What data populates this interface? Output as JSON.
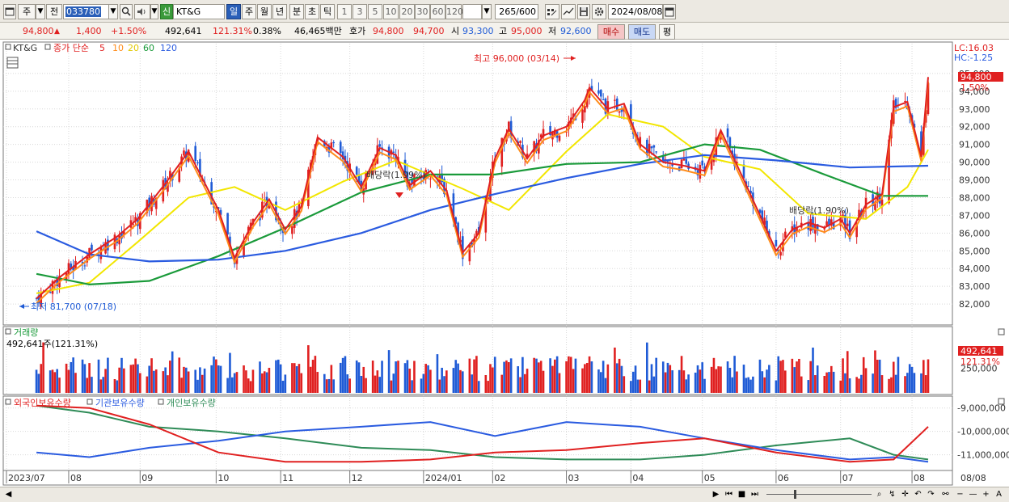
{
  "toolbar": {
    "market_label": "주",
    "prev_label": "전",
    "code_value": "033780",
    "stock_name_badge": "신",
    "stock_name": "KT&G",
    "period_tabs": [
      "일",
      "주",
      "월",
      "년",
      "분",
      "초",
      "틱"
    ],
    "intervals": [
      "1",
      "3",
      "5",
      "10",
      "20",
      "30",
      "60",
      "120"
    ],
    "count_value": "265",
    "count_total": "/600",
    "date_value": "2024/08/08"
  },
  "infobar": {
    "price": "94,800",
    "change": "1,400",
    "change_pct": "+1.50%",
    "volume": "492,641",
    "volume_pct": "121.31%",
    "turnover_pct": "0.38%",
    "amount": "46,465백만",
    "quote_label": "호가",
    "ask": "94,800",
    "bid": "94,700",
    "open_label": "시",
    "open": "93,300",
    "high_label": "고",
    "high": "95,000",
    "low_label": "저",
    "low": "92,600",
    "buy_label": "매수",
    "sell_label": "매도",
    "eval_label": "평"
  },
  "colors": {
    "up": "#e02020",
    "down": "#1f5bd6",
    "ma5": "#e02020",
    "ma10": "#ff8c1a",
    "ma20": "#f2e600",
    "ma60": "#1a9a3a",
    "ma120": "#2a5be0",
    "bg": "#ffffff",
    "grid": "#d8d8d8",
    "foreign": "#e02020",
    "institution": "#2a5be0",
    "individual": "#2e8b57"
  },
  "price_panel": {
    "stock_label": "KT&G",
    "legend_label": "종가 단순",
    "ma_periods": [
      "5",
      "10",
      "20",
      "60",
      "120"
    ],
    "lc_label": "LC:16.03",
    "hc_label": "HC:-1.25",
    "high_annotation": "최고 96,000 (03/14)",
    "low_annotation": "최저 81,700 (07/18)",
    "dividend_label": "배당락(1.99%)",
    "dividend_label_2": "배당락(1.90%)",
    "current_price_tag": "94,800",
    "current_pct_tag": "1.50%"
  },
  "volume_panel": {
    "title": "거래량",
    "value_label": "492,641주(121.31%)",
    "current_tag": "492,641",
    "current_pct_tag": "121.31%"
  },
  "holdings_panel": {
    "series_labels": [
      "외국인보유수량",
      "기관보유수량",
      "개인보유수량"
    ]
  },
  "x_axis": {
    "months": [
      "2023/07",
      "08",
      "09",
      "10",
      "11",
      "12",
      "2024/01",
      "02",
      "03",
      "04",
      "05",
      "06",
      "07",
      "08"
    ],
    "end_label": "08/08"
  },
  "chart_data": {
    "type": "candlestick",
    "title": "KT&G",
    "price_axis": {
      "ticks": [
        82000,
        83000,
        84000,
        85000,
        86000,
        87000,
        88000,
        89000,
        90000,
        91000,
        92000,
        93000,
        94000,
        95000
      ],
      "range": [
        81000,
        96500
      ]
    },
    "volume_axis": {
      "ticks": [
        250000,
        492641
      ]
    },
    "holdings_axis": {
      "ticks": [
        -9000000,
        -10000000,
        -11000000
      ],
      "tick_labels": [
        "-9,000,000",
        "-10,000,000",
        "-11,000,000"
      ]
    },
    "close_path": [
      [
        "2023/07/18",
        82300
      ],
      [
        "2023/07/28",
        83500
      ],
      [
        "2023/08/10",
        84800
      ],
      [
        "2023/08/22",
        85800
      ],
      [
        "2023/08/31",
        86800
      ],
      [
        "2023/09/12",
        88800
      ],
      [
        "2023/09/22",
        90600
      ],
      [
        "2023/10/05",
        87300
      ],
      [
        "2023/10/12",
        84600
      ],
      [
        "2023/10/20",
        86600
      ],
      [
        "2023/10/27",
        87900
      ],
      [
        "2023/11/03",
        86200
      ],
      [
        "2023/11/10",
        87500
      ],
      [
        "2023/11/17",
        91400
      ],
      [
        "2023/11/28",
        90300
      ],
      [
        "2023/12/06",
        88600
      ],
      [
        "2023/12/14",
        90800
      ],
      [
        "2023/12/21",
        90400
      ],
      [
        "2023/12/27",
        88700
      ],
      [
        "2024/01/05",
        89500
      ],
      [
        "2024/01/12",
        88400
      ],
      [
        "2024/01/19",
        84900
      ],
      [
        "2024/01/26",
        86000
      ],
      [
        "2024/02/02",
        90200
      ],
      [
        "2024/02/08",
        91900
      ],
      [
        "2024/02/16",
        90200
      ],
      [
        "2024/02/23",
        91500
      ],
      [
        "2024/03/04",
        92000
      ],
      [
        "2024/03/12",
        93500
      ],
      [
        "2024/03/14",
        94200
      ],
      [
        "2024/03/22",
        93000
      ],
      [
        "2024/03/29",
        93300
      ],
      [
        "2024/04/05",
        91000
      ],
      [
        "2024/04/15",
        90000
      ],
      [
        "2024/04/24",
        89800
      ],
      [
        "2024/05/03",
        89500
      ],
      [
        "2024/05/10",
        91800
      ],
      [
        "2024/05/20",
        89000
      ],
      [
        "2024/05/27",
        87000
      ],
      [
        "2024/06/03",
        85000
      ],
      [
        "2024/06/10",
        86200
      ],
      [
        "2024/06/17",
        86600
      ],
      [
        "2024/06/24",
        86300
      ],
      [
        "2024/07/01",
        86800
      ],
      [
        "2024/07/05",
        86000
      ],
      [
        "2024/07/12",
        87600
      ],
      [
        "2024/07/19",
        88200
      ],
      [
        "2024/07/24",
        93100
      ],
      [
        "2024/07/30",
        93400
      ],
      [
        "2024/08/05",
        90300
      ],
      [
        "2024/08/08",
        94800
      ]
    ],
    "ma20_path": [
      [
        "2023/07/18",
        82600
      ],
      [
        "2023/08/10",
        83200
      ],
      [
        "2023/08/31",
        85500
      ],
      [
        "2023/09/22",
        88000
      ],
      [
        "2023/10/12",
        88600
      ],
      [
        "2023/11/03",
        87300
      ],
      [
        "2023/11/28",
        88900
      ],
      [
        "2023/12/21",
        90100
      ],
      [
        "2024/01/19",
        88500
      ],
      [
        "2024/02/08",
        87300
      ],
      [
        "2024/03/04",
        90600
      ],
      [
        "2024/03/22",
        92700
      ],
      [
        "2024/04/15",
        92000
      ],
      [
        "2024/05/03",
        90300
      ],
      [
        "2024/05/27",
        89600
      ],
      [
        "2024/06/17",
        87100
      ],
      [
        "2024/07/12",
        86800
      ],
      [
        "2024/07/30",
        88600
      ],
      [
        "2024/08/08",
        90700
      ]
    ],
    "ma60_path": [
      [
        "2023/07/18",
        83700
      ],
      [
        "2023/08/10",
        83100
      ],
      [
        "2023/09/05",
        83300
      ],
      [
        "2023/10/05",
        84700
      ],
      [
        "2023/11/03",
        86300
      ],
      [
        "2023/12/06",
        88300
      ],
      [
        "2024/01/05",
        89300
      ],
      [
        "2024/02/02",
        89300
      ],
      [
        "2024/03/04",
        89900
      ],
      [
        "2024/04/05",
        90000
      ],
      [
        "2024/05/03",
        91000
      ],
      [
        "2024/05/27",
        90700
      ],
      [
        "2024/06/24",
        89300
      ],
      [
        "2024/07/19",
        88100
      ],
      [
        "2024/08/08",
        88100
      ]
    ],
    "ma120_path": [
      [
        "2023/07/18",
        86100
      ],
      [
        "2023/08/10",
        84800
      ],
      [
        "2023/09/05",
        84400
      ],
      [
        "2023/10/05",
        84500
      ],
      [
        "2023/11/03",
        85000
      ],
      [
        "2023/12/06",
        86000
      ],
      [
        "2024/01/05",
        87300
      ],
      [
        "2024/02/02",
        88200
      ],
      [
        "2024/03/04",
        89100
      ],
      [
        "2024/04/05",
        89900
      ],
      [
        "2024/05/03",
        90400
      ],
      [
        "2024/06/03",
        90100
      ],
      [
        "2024/07/05",
        89700
      ],
      [
        "2024/08/08",
        89800
      ]
    ],
    "foreign_holdings_path": [
      [
        "2023/07/18",
        -8900000
      ],
      [
        "2023/08/10",
        -9000000
      ],
      [
        "2023/09/05",
        -9700000
      ],
      [
        "2023/10/05",
        -10900000
      ],
      [
        "2023/11/03",
        -11300000
      ],
      [
        "2023/12/06",
        -11300000
      ],
      [
        "2024/01/05",
        -11200000
      ],
      [
        "2024/02/02",
        -10900000
      ],
      [
        "2024/03/04",
        -10800000
      ],
      [
        "2024/04/05",
        -10500000
      ],
      [
        "2024/05/03",
        -10300000
      ],
      [
        "2024/06/03",
        -10900000
      ],
      [
        "2024/07/05",
        -11300000
      ],
      [
        "2024/07/24",
        -11200000
      ],
      [
        "2024/08/08",
        -9800000
      ]
    ],
    "institution_holdings_path": [
      [
        "2023/07/18",
        -10900000
      ],
      [
        "2023/08/10",
        -11100000
      ],
      [
        "2023/09/05",
        -10700000
      ],
      [
        "2023/10/05",
        -10400000
      ],
      [
        "2023/11/03",
        -10000000
      ],
      [
        "2023/12/06",
        -9800000
      ],
      [
        "2024/01/05",
        -9600000
      ],
      [
        "2024/02/02",
        -10200000
      ],
      [
        "2024/03/04",
        -9600000
      ],
      [
        "2024/04/05",
        -9800000
      ],
      [
        "2024/05/03",
        -10300000
      ],
      [
        "2024/06/03",
        -10800000
      ],
      [
        "2024/07/05",
        -11200000
      ],
      [
        "2024/07/24",
        -11100000
      ],
      [
        "2024/08/08",
        -11300000
      ]
    ],
    "individual_holdings_path": [
      [
        "2023/07/18",
        -8900000
      ],
      [
        "2023/08/10",
        -9200000
      ],
      [
        "2023/09/05",
        -9800000
      ],
      [
        "2023/10/05",
        -10000000
      ],
      [
        "2023/11/03",
        -10300000
      ],
      [
        "2023/12/06",
        -10700000
      ],
      [
        "2024/01/05",
        -10800000
      ],
      [
        "2024/02/02",
        -11100000
      ],
      [
        "2024/03/04",
        -11200000
      ],
      [
        "2024/04/05",
        -11200000
      ],
      [
        "2024/05/03",
        -11000000
      ],
      [
        "2024/06/03",
        -10600000
      ],
      [
        "2024/07/05",
        -10300000
      ],
      [
        "2024/07/24",
        -11000000
      ],
      [
        "2024/08/08",
        -11200000
      ]
    ]
  }
}
